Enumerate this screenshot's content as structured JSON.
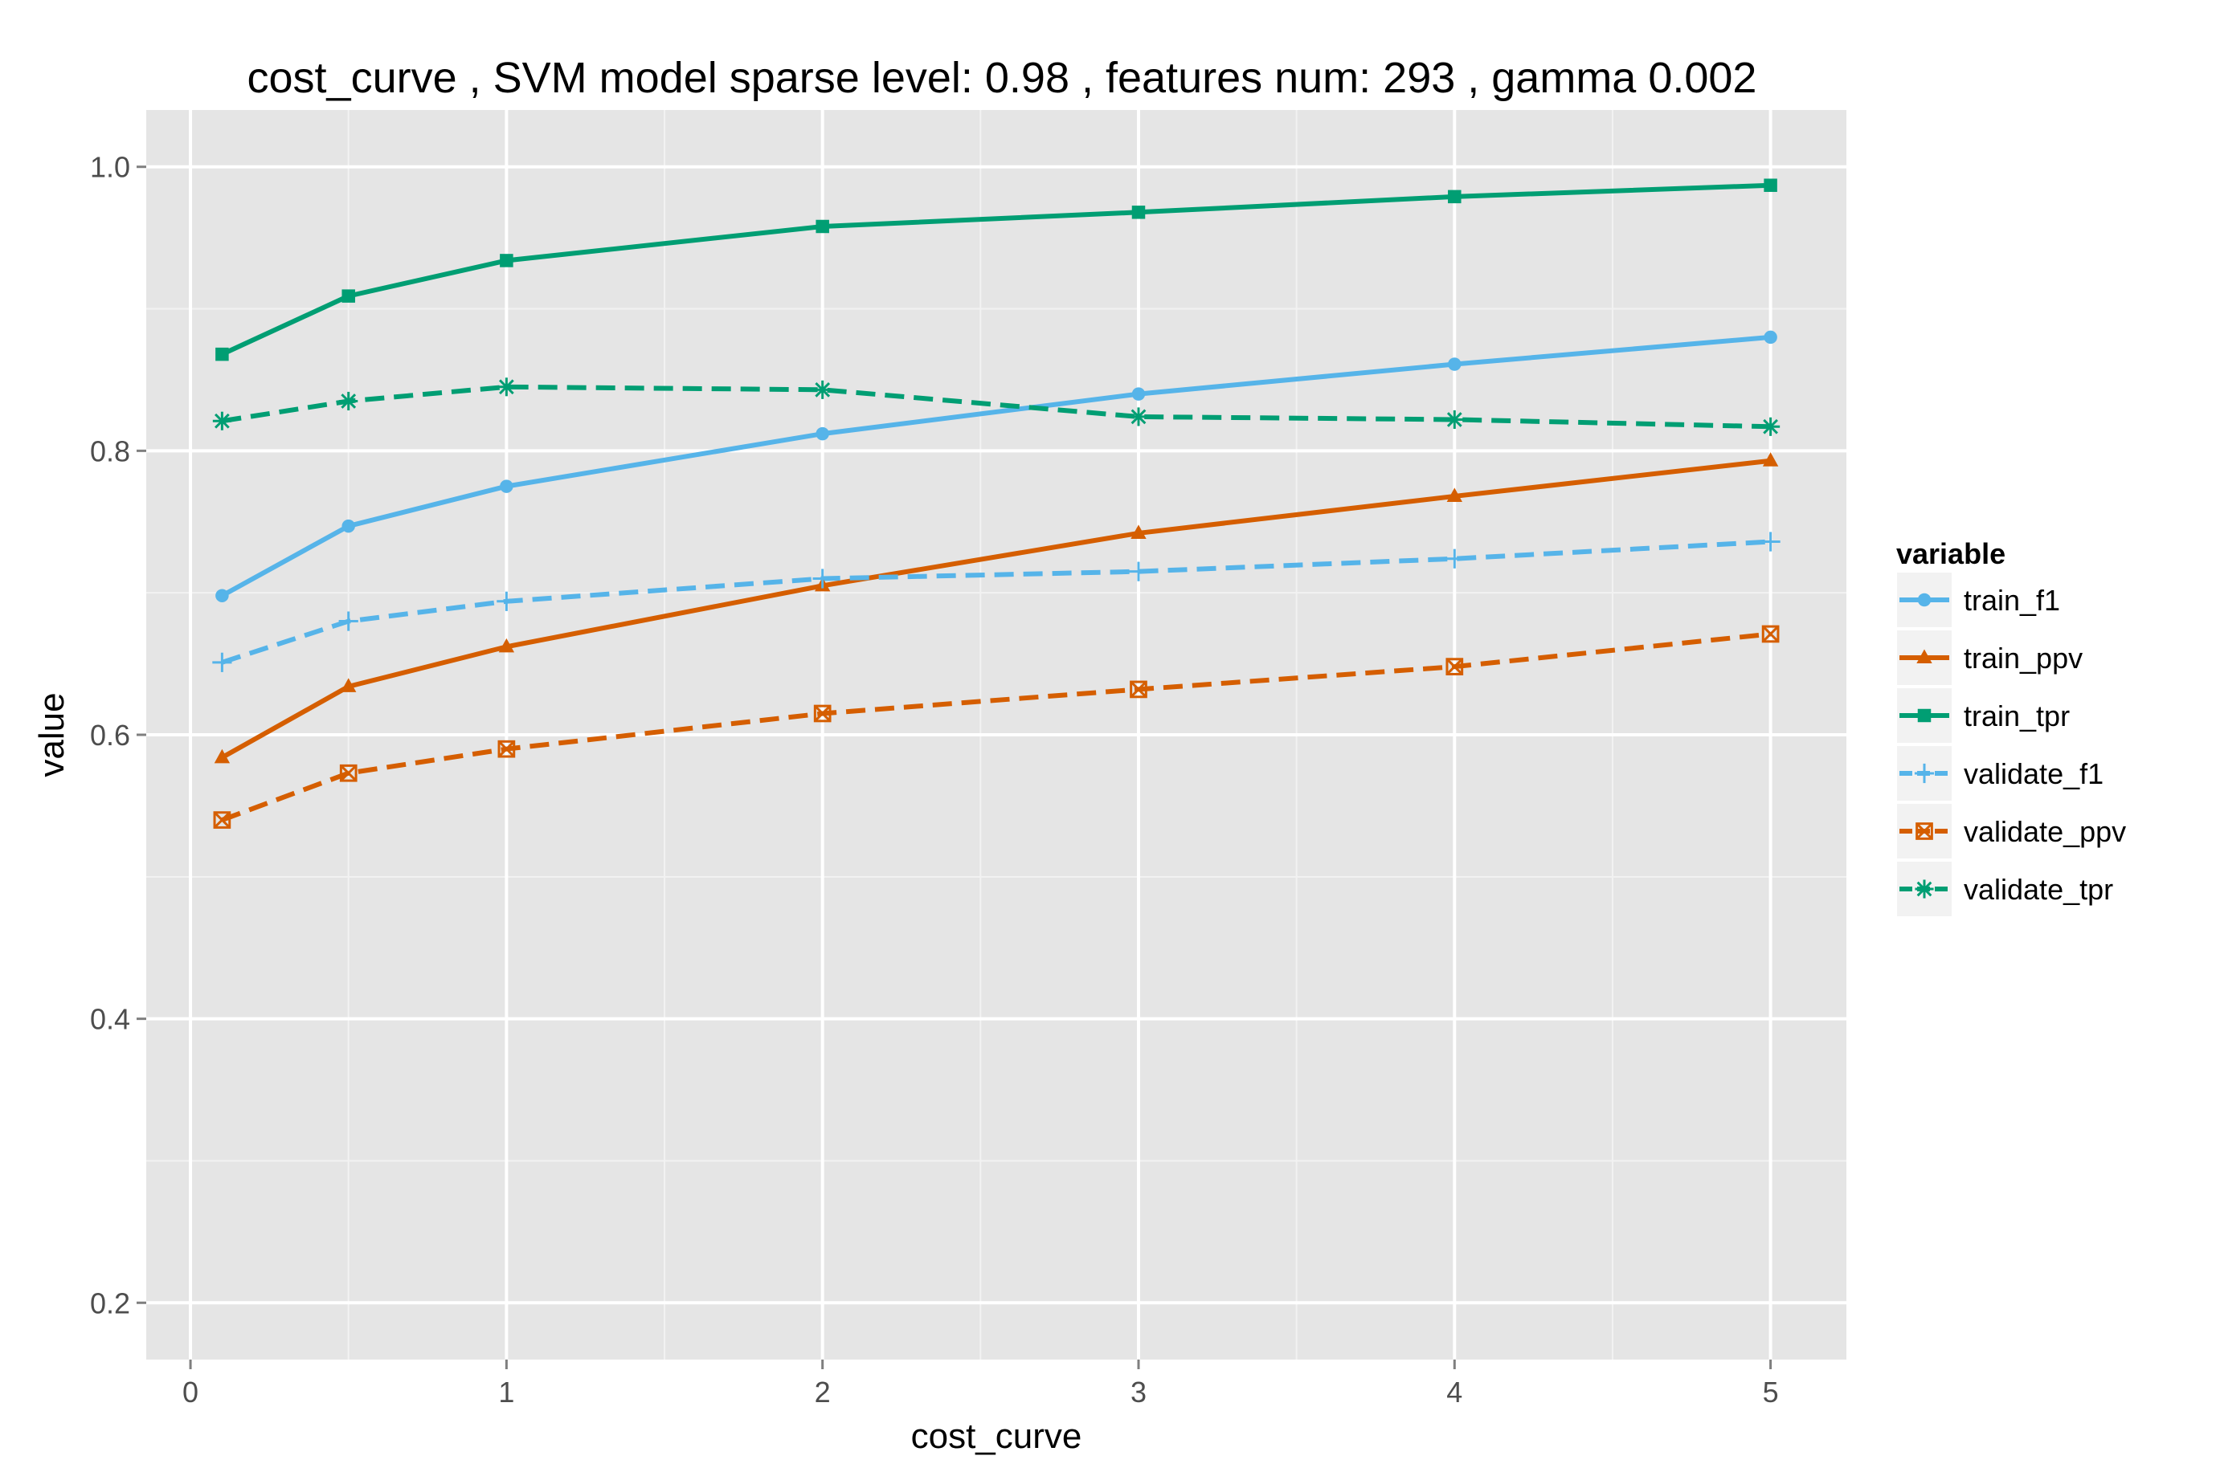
{
  "chart_data": {
    "type": "line",
    "title": "cost_curve ,  SVM model sparse level: 0.98 , features num: 293 , gamma 0.002",
    "xlabel": "cost_curve",
    "ylabel": "value",
    "x": [
      0.1,
      0.5,
      1,
      2,
      3,
      4,
      5
    ],
    "xlim": [
      -0.14,
      5.24
    ],
    "ylim": [
      0.16,
      1.04
    ],
    "xticks": [
      0,
      1,
      2,
      3,
      4,
      5
    ],
    "xtick_labels": [
      "0",
      "1",
      "2",
      "3",
      "4",
      "5"
    ],
    "yticks": [
      0.2,
      0.4,
      0.6,
      0.8,
      1.0
    ],
    "ytick_labels": [
      "0.2",
      "0.4",
      "0.6",
      "0.8",
      "1.0"
    ],
    "grid": true,
    "legend_title": "variable",
    "legend_position": "right",
    "series": [
      {
        "name": "train_f1",
        "color": "#56B4E9",
        "dash": "solid",
        "marker": "circle",
        "values": [
          0.698,
          0.747,
          0.775,
          0.812,
          0.84,
          0.861,
          0.88
        ]
      },
      {
        "name": "train_ppv",
        "color": "#D55E00",
        "dash": "solid",
        "marker": "triangle",
        "values": [
          0.584,
          0.634,
          0.662,
          0.705,
          0.742,
          0.768,
          0.793
        ]
      },
      {
        "name": "train_tpr",
        "color": "#009E73",
        "dash": "solid",
        "marker": "square",
        "values": [
          0.868,
          0.909,
          0.934,
          0.958,
          0.968,
          0.979,
          0.987
        ]
      },
      {
        "name": "validate_f1",
        "color": "#56B4E9",
        "dash": "dashed",
        "marker": "plus",
        "values": [
          0.651,
          0.68,
          0.694,
          0.71,
          0.715,
          0.724,
          0.736
        ]
      },
      {
        "name": "validate_ppv",
        "color": "#D55E00",
        "dash": "dashed",
        "marker": "boxcross",
        "values": [
          0.54,
          0.573,
          0.59,
          0.615,
          0.632,
          0.648,
          0.671
        ]
      },
      {
        "name": "validate_tpr",
        "color": "#009E73",
        "dash": "dashed",
        "marker": "asterisk",
        "values": [
          0.821,
          0.835,
          0.845,
          0.843,
          0.824,
          0.822,
          0.817
        ]
      }
    ]
  }
}
